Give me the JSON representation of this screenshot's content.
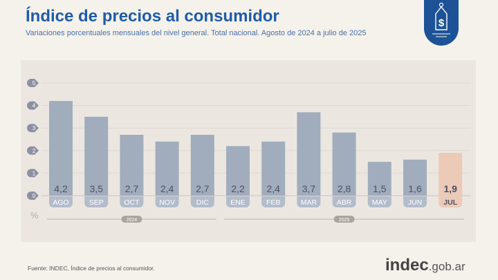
{
  "header": {
    "title": "Índice de precios al consumidor",
    "subtitle": "Variaciones porcentuales mensuales del nivel general. Total nacional. Agosto de 2024 a julio de 2025"
  },
  "footer": {
    "source": "Fuente: INDEC, Índice de precios al consumidor.",
    "logo_main": "indec",
    "logo_suffix": ".gob.ar"
  },
  "colors": {
    "bar": "#a1adbd",
    "highlight": "#eccab7",
    "title": "#1f5ca8",
    "badge": "#1d5297"
  },
  "chart_data": {
    "type": "bar",
    "title": "Índice de precios al consumidor",
    "ylabel": "%",
    "ylim": [
      0,
      5
    ],
    "yticks": [
      "0",
      "1",
      "2",
      "3",
      "4",
      "5"
    ],
    "categories": [
      "AGO",
      "SEP",
      "OCT",
      "NOV",
      "DIC",
      "ENE",
      "FEB",
      "MAR",
      "ABR",
      "MAY",
      "JUN",
      "JUL"
    ],
    "values": [
      4.2,
      3.5,
      2.7,
      2.4,
      2.7,
      2.2,
      2.4,
      3.7,
      2.8,
      1.5,
      1.6,
      1.9
    ],
    "labels": [
      "4,2",
      "3,5",
      "2,7",
      "2,4",
      "2,7",
      "2,2",
      "2,4",
      "3,7",
      "2,8",
      "1,5",
      "1,6",
      "1,9"
    ],
    "highlight_index": 11,
    "groups": [
      {
        "label": "2024",
        "from": 0,
        "to": 4
      },
      {
        "label": "2025",
        "from": 5,
        "to": 11
      }
    ],
    "grid": true
  }
}
